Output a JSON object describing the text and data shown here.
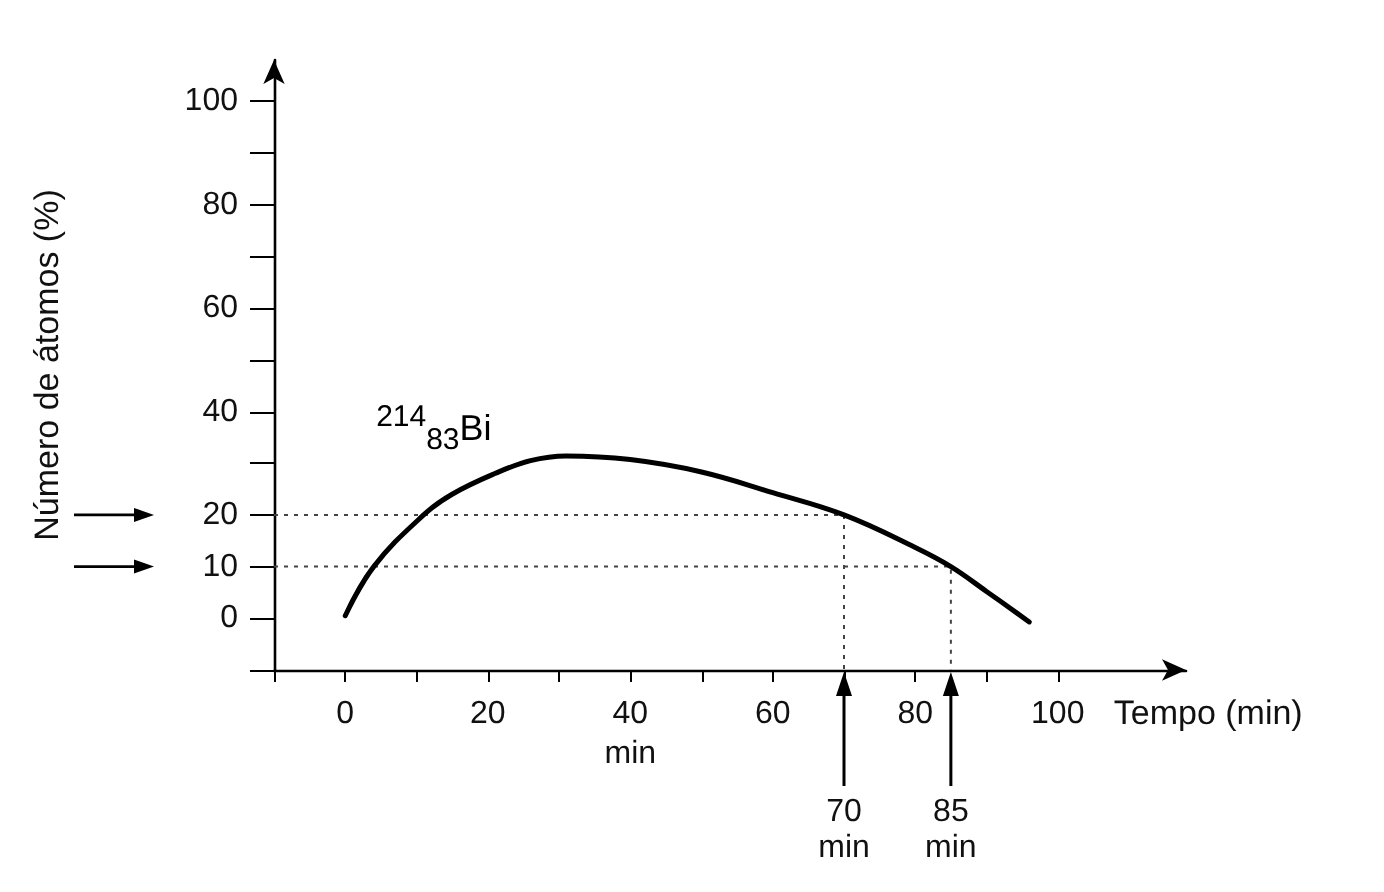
{
  "chart_data": {
    "type": "line",
    "xlabel": "Tempo (min)",
    "ylabel": "Número de átomos (%)",
    "xlim": [
      -10,
      118
    ],
    "ylim": [
      -10,
      108
    ],
    "xticks": [
      {
        "value": -10,
        "label": null
      },
      0,
      {
        "value": 10,
        "label": null
      },
      20,
      {
        "value": 30,
        "label": null
      },
      {
        "value": 40,
        "label": "40\nmin"
      },
      {
        "value": 50,
        "label": null
      },
      60,
      {
        "value": 70,
        "label": null
      },
      80,
      {
        "value": 90,
        "label": null
      },
      100
    ],
    "yticks": [
      {
        "value": -10,
        "label": null
      },
      0,
      10,
      20,
      {
        "value": 30,
        "label": null
      },
      40,
      {
        "value": 50,
        "label": null
      },
      60,
      {
        "value": 70,
        "label": null
      },
      80,
      {
        "value": 90,
        "label": null
      },
      100
    ],
    "series": [
      {
        "name": "$^{214}$$_{83}$Bi",
        "color": "#000000",
        "x": [
          0,
          4,
          11,
          15,
          21,
          26,
          31,
          40,
          50,
          60,
          70,
          80,
          85,
          90,
          96
        ],
        "values": [
          0.5,
          10,
          20,
          24,
          28,
          30.5,
          31.4,
          30.7,
          28.3,
          24.3,
          20,
          13.7,
          10,
          5.2,
          -0.7
        ]
      },
      {
        "color": "#444444",
        "line_style": "dotted",
        "x": [
          -10,
          70,
          70
        ],
        "values": [
          20,
          20,
          -10
        ]
      },
      {
        "color": "#444444",
        "line_style": "dotted",
        "x": [
          -10,
          85,
          85
        ],
        "values": [
          10,
          10,
          -10
        ]
      }
    ],
    "annotations": [
      {
        "text": "70\nmin",
        "x": 70,
        "y": -10
      },
      {
        "text": "85\nmin",
        "x": 85,
        "y": -10
      }
    ],
    "grid": false,
    "legend": false,
    "marker": "none",
    "line_style": "solid"
  }
}
